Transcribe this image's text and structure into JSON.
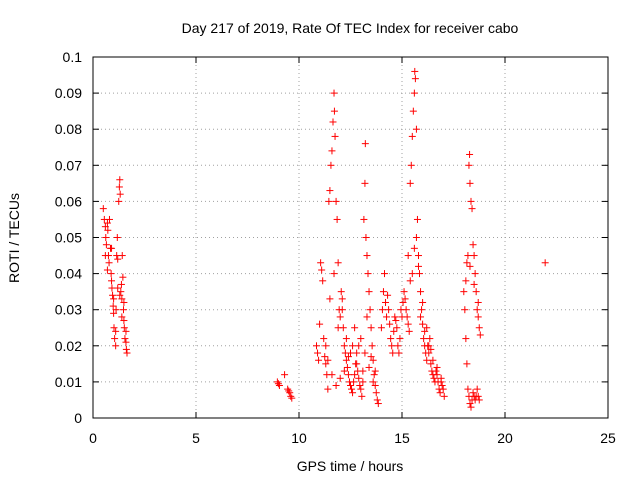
{
  "chart_data": {
    "type": "scatter",
    "title": "Day 217 of 2019, Rate Of TEC Index for receiver cabo",
    "xlabel": "GPS time / hours",
    "ylabel": "ROTI / TECUs",
    "xlim": [
      0,
      25
    ],
    "ylim": [
      0,
      0.1
    ],
    "x_ticks": [
      0,
      5,
      10,
      15,
      20,
      25
    ],
    "y_ticks": [
      0,
      0.01,
      0.02,
      0.03,
      0.04,
      0.05,
      0.06,
      0.07,
      0.08,
      0.09,
      0.1
    ],
    "x_tick_labels": [
      "0",
      "5",
      "10",
      "15",
      "20",
      "25"
    ],
    "y_tick_labels": [
      "0",
      "0.01",
      "0.02",
      "0.03",
      "0.04",
      "0.05",
      "0.06",
      "0.07",
      "0.08",
      "0.09",
      "0.1"
    ],
    "grid": true,
    "legend": false,
    "marker": "plus",
    "color": "#ff0000",
    "series": [
      {
        "points": [
          [
            0.5,
            0.058
          ],
          [
            0.55,
            0.055
          ],
          [
            0.6,
            0.053
          ],
          [
            0.62,
            0.05
          ],
          [
            0.65,
            0.048
          ],
          [
            0.7,
            0.054
          ],
          [
            0.72,
            0.052
          ],
          [
            0.75,
            0.045
          ],
          [
            0.78,
            0.043
          ],
          [
            0.8,
            0.055
          ],
          [
            0.85,
            0.047
          ],
          [
            0.88,
            0.04
          ],
          [
            0.9,
            0.038
          ],
          [
            0.92,
            0.036
          ],
          [
            0.95,
            0.034
          ],
          [
            0.98,
            0.031
          ],
          [
            1.0,
            0.029
          ],
          [
            1.02,
            0.025
          ],
          [
            1.05,
            0.022
          ],
          [
            1.1,
            0.02
          ],
          [
            1.12,
            0.03
          ],
          [
            1.15,
            0.045
          ],
          [
            1.18,
            0.05
          ],
          [
            1.2,
            0.044
          ],
          [
            1.25,
            0.06
          ],
          [
            1.28,
            0.064
          ],
          [
            1.3,
            0.066
          ],
          [
            1.32,
            0.062
          ],
          [
            1.35,
            0.035
          ],
          [
            1.38,
            0.037
          ],
          [
            1.4,
            0.033
          ],
          [
            1.42,
            0.045
          ],
          [
            1.45,
            0.039
          ],
          [
            1.48,
            0.03
          ],
          [
            1.5,
            0.027
          ],
          [
            1.52,
            0.025
          ],
          [
            1.55,
            0.022
          ],
          [
            1.6,
            0.021
          ],
          [
            1.62,
            0.019
          ],
          [
            1.65,
            0.018
          ],
          [
            0.6,
            0.045
          ],
          [
            0.7,
            0.041
          ],
          [
            0.9,
            0.047
          ],
          [
            1.0,
            0.033
          ],
          [
            1.1,
            0.024
          ],
          [
            1.2,
            0.036
          ],
          [
            1.3,
            0.034
          ],
          [
            1.4,
            0.028
          ],
          [
            1.5,
            0.032
          ],
          [
            1.6,
            0.024
          ],
          [
            8.95,
            0.01
          ],
          [
            9.0,
            0.0095
          ],
          [
            9.05,
            0.009
          ],
          [
            9.3,
            0.012
          ],
          [
            9.45,
            0.008
          ],
          [
            9.5,
            0.0075
          ],
          [
            9.55,
            0.007
          ],
          [
            9.6,
            0.006
          ],
          [
            9.65,
            0.0055
          ],
          [
            10.85,
            0.02
          ],
          [
            10.9,
            0.018
          ],
          [
            10.95,
            0.016
          ],
          [
            11.0,
            0.026
          ],
          [
            11.05,
            0.043
          ],
          [
            11.1,
            0.041
          ],
          [
            11.15,
            0.038
          ],
          [
            11.2,
            0.022
          ],
          [
            11.25,
            0.017
          ],
          [
            11.3,
            0.015
          ],
          [
            11.35,
            0.012
          ],
          [
            11.4,
            0.008
          ],
          [
            11.45,
            0.06
          ],
          [
            11.5,
            0.063
          ],
          [
            11.55,
            0.07
          ],
          [
            11.6,
            0.074
          ],
          [
            11.65,
            0.082
          ],
          [
            11.7,
            0.09
          ],
          [
            11.72,
            0.085
          ],
          [
            11.75,
            0.078
          ],
          [
            11.8,
            0.06
          ],
          [
            11.85,
            0.055
          ],
          [
            11.9,
            0.043
          ],
          [
            11.95,
            0.03
          ],
          [
            12.0,
            0.028
          ],
          [
            12.05,
            0.035
          ],
          [
            12.1,
            0.033
          ],
          [
            12.15,
            0.025
          ],
          [
            12.2,
            0.02
          ],
          [
            12.25,
            0.018
          ],
          [
            12.3,
            0.016
          ],
          [
            12.35,
            0.014
          ],
          [
            12.4,
            0.012
          ],
          [
            12.45,
            0.01
          ],
          [
            12.5,
            0.009
          ],
          [
            12.55,
            0.008
          ],
          [
            12.6,
            0.007
          ],
          [
            12.65,
            0.01
          ],
          [
            12.7,
            0.012
          ],
          [
            12.75,
            0.015
          ],
          [
            12.8,
            0.018
          ],
          [
            12.85,
            0.013
          ],
          [
            12.9,
            0.011
          ],
          [
            12.95,
            0.009
          ],
          [
            13.0,
            0.008
          ],
          [
            13.05,
            0.006
          ],
          [
            13.1,
            0.01
          ],
          [
            13.15,
            0.055
          ],
          [
            13.2,
            0.065
          ],
          [
            13.22,
            0.076
          ],
          [
            13.25,
            0.05
          ],
          [
            13.3,
            0.045
          ],
          [
            13.35,
            0.04
          ],
          [
            13.4,
            0.035
          ],
          [
            13.45,
            0.03
          ],
          [
            13.5,
            0.025
          ],
          [
            13.55,
            0.02
          ],
          [
            13.6,
            0.016
          ],
          [
            13.65,
            0.012
          ],
          [
            13.7,
            0.009
          ],
          [
            13.75,
            0.007
          ],
          [
            13.8,
            0.005
          ],
          [
            13.85,
            0.004
          ],
          [
            11.3,
            0.02
          ],
          [
            11.4,
            0.016
          ],
          [
            11.6,
            0.012
          ],
          [
            11.8,
            0.009
          ],
          [
            12.0,
            0.011
          ],
          [
            12.2,
            0.013
          ],
          [
            12.4,
            0.017
          ],
          [
            12.6,
            0.02
          ],
          [
            12.8,
            0.015
          ],
          [
            13.0,
            0.022
          ],
          [
            13.2,
            0.018
          ],
          [
            13.4,
            0.014
          ],
          [
            13.6,
            0.01
          ],
          [
            11.5,
            0.033
          ],
          [
            11.7,
            0.04
          ],
          [
            11.9,
            0.025
          ],
          [
            12.1,
            0.03
          ],
          [
            12.3,
            0.022
          ],
          [
            12.5,
            0.018
          ],
          [
            12.7,
            0.025
          ],
          [
            12.9,
            0.02
          ],
          [
            13.1,
            0.013
          ],
          [
            13.3,
            0.028
          ],
          [
            13.5,
            0.017
          ],
          [
            13.7,
            0.013
          ],
          [
            14.0,
            0.025
          ],
          [
            14.05,
            0.03
          ],
          [
            14.1,
            0.035
          ],
          [
            14.15,
            0.04
          ],
          [
            14.2,
            0.032
          ],
          [
            14.25,
            0.028
          ],
          [
            14.3,
            0.034
          ],
          [
            14.35,
            0.03
          ],
          [
            14.4,
            0.026
          ],
          [
            14.45,
            0.022
          ],
          [
            14.5,
            0.02
          ],
          [
            14.55,
            0.018
          ],
          [
            14.6,
            0.024
          ],
          [
            14.65,
            0.028
          ],
          [
            14.7,
            0.027
          ],
          [
            14.75,
            0.025
          ],
          [
            14.8,
            0.02
          ],
          [
            14.85,
            0.018
          ],
          [
            14.9,
            0.022
          ],
          [
            14.95,
            0.03
          ],
          [
            15.0,
            0.028
          ],
          [
            15.05,
            0.032
          ],
          [
            15.1,
            0.035
          ],
          [
            15.15,
            0.033
          ],
          [
            15.2,
            0.03
          ],
          [
            15.25,
            0.028
          ],
          [
            15.3,
            0.026
          ],
          [
            15.35,
            0.024
          ],
          [
            15.4,
            0.065
          ],
          [
            15.45,
            0.07
          ],
          [
            15.5,
            0.078
          ],
          [
            15.55,
            0.085
          ],
          [
            15.6,
            0.09
          ],
          [
            15.62,
            0.096
          ],
          [
            15.65,
            0.094
          ],
          [
            15.7,
            0.08
          ],
          [
            15.75,
            0.055
          ],
          [
            15.8,
            0.045
          ],
          [
            15.85,
            0.04
          ],
          [
            15.9,
            0.035
          ],
          [
            15.95,
            0.03
          ],
          [
            16.0,
            0.026
          ],
          [
            16.05,
            0.022
          ],
          [
            16.1,
            0.02
          ],
          [
            16.15,
            0.018
          ],
          [
            16.2,
            0.016
          ],
          [
            16.25,
            0.02
          ],
          [
            16.3,
            0.018
          ],
          [
            16.35,
            0.022
          ],
          [
            16.4,
            0.015
          ],
          [
            16.45,
            0.013
          ],
          [
            16.5,
            0.012
          ],
          [
            16.55,
            0.011
          ],
          [
            16.6,
            0.01
          ],
          [
            16.65,
            0.013
          ],
          [
            16.7,
            0.012
          ],
          [
            16.75,
            0.01
          ],
          [
            16.8,
            0.008
          ],
          [
            16.85,
            0.007
          ],
          [
            16.9,
            0.01
          ],
          [
            16.95,
            0.009
          ],
          [
            17.0,
            0.008
          ],
          [
            17.05,
            0.006
          ],
          [
            15.3,
            0.045
          ],
          [
            15.5,
            0.04
          ],
          [
            15.7,
            0.05
          ],
          [
            15.9,
            0.028
          ],
          [
            16.1,
            0.024
          ],
          [
            16.3,
            0.02
          ],
          [
            16.5,
            0.016
          ],
          [
            16.7,
            0.014
          ],
          [
            16.9,
            0.011
          ],
          [
            15.4,
            0.038
          ],
          [
            15.6,
            0.047
          ],
          [
            15.8,
            0.042
          ],
          [
            16.0,
            0.032
          ],
          [
            16.2,
            0.025
          ],
          [
            16.4,
            0.019
          ],
          [
            18.0,
            0.035
          ],
          [
            18.05,
            0.03
          ],
          [
            18.1,
            0.038
          ],
          [
            18.15,
            0.043
          ],
          [
            18.2,
            0.045
          ],
          [
            18.25,
            0.07
          ],
          [
            18.28,
            0.073
          ],
          [
            18.3,
            0.065
          ],
          [
            18.35,
            0.06
          ],
          [
            18.4,
            0.058
          ],
          [
            18.45,
            0.048
          ],
          [
            18.5,
            0.045
          ],
          [
            18.55,
            0.04
          ],
          [
            18.6,
            0.035
          ],
          [
            18.65,
            0.03
          ],
          [
            18.7,
            0.028
          ],
          [
            18.75,
            0.025
          ],
          [
            18.8,
            0.023
          ],
          [
            18.1,
            0.022
          ],
          [
            18.15,
            0.015
          ],
          [
            18.2,
            0.008
          ],
          [
            18.25,
            0.006
          ],
          [
            18.3,
            0.004
          ],
          [
            18.35,
            0.003
          ],
          [
            18.4,
            0.005
          ],
          [
            18.45,
            0.007
          ],
          [
            18.5,
            0.006
          ],
          [
            18.55,
            0.005
          ],
          [
            18.6,
            0.006
          ],
          [
            18.65,
            0.008
          ],
          [
            18.7,
            0.006
          ],
          [
            18.75,
            0.005
          ],
          [
            18.3,
            0.042
          ],
          [
            18.5,
            0.037
          ],
          [
            18.7,
            0.032
          ],
          [
            21.95,
            0.043
          ]
        ]
      }
    ]
  }
}
